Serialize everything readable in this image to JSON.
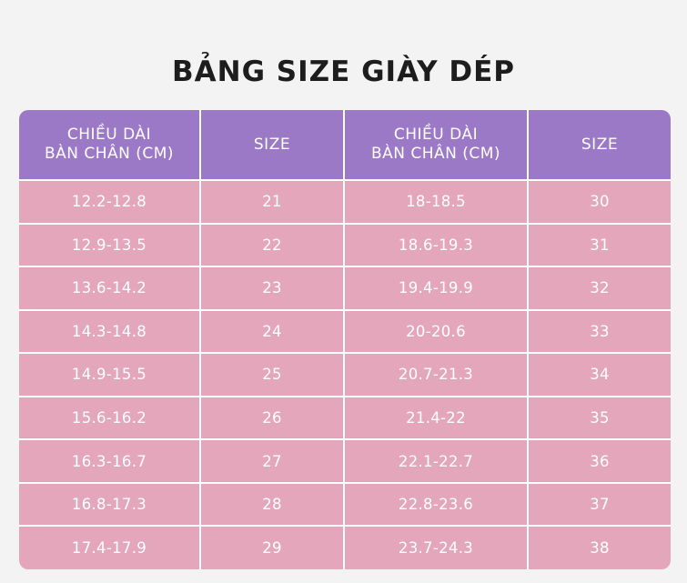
{
  "title": "BẢNG SIZE GIÀY DÉP",
  "table": {
    "headers": [
      {
        "line1": "CHIỀU DÀI",
        "line2": "BÀN CHÂN (CM)"
      },
      {
        "line1": "SIZE",
        "line2": ""
      },
      {
        "line1": "CHIỀU DÀI",
        "line2": "BÀN CHÂN (CM)"
      },
      {
        "line1": "SIZE",
        "line2": ""
      }
    ],
    "rows": [
      [
        "12.2-12.8",
        "21",
        "18-18.5",
        "30"
      ],
      [
        "12.9-13.5",
        "22",
        "18.6-19.3",
        "31"
      ],
      [
        "13.6-14.2",
        "23",
        "19.4-19.9",
        "32"
      ],
      [
        "14.3-14.8",
        "24",
        "20-20.6",
        "33"
      ],
      [
        "14.9-15.5",
        "25",
        "20.7-21.3",
        "34"
      ],
      [
        "15.6-16.2",
        "26",
        "21.4-22",
        "35"
      ],
      [
        "16.3-16.7",
        "27",
        "22.1-22.7",
        "36"
      ],
      [
        "16.8-17.3",
        "28",
        "22.8-23.6",
        "37"
      ],
      [
        "17.4-17.9",
        "29",
        "23.7-24.3",
        "38"
      ]
    ]
  },
  "colors": {
    "header_bg": "#9b79c6",
    "row_bg": "#e4a6bb",
    "grid_line": "#ffffff",
    "page_bg": "#f3f3f3"
  }
}
